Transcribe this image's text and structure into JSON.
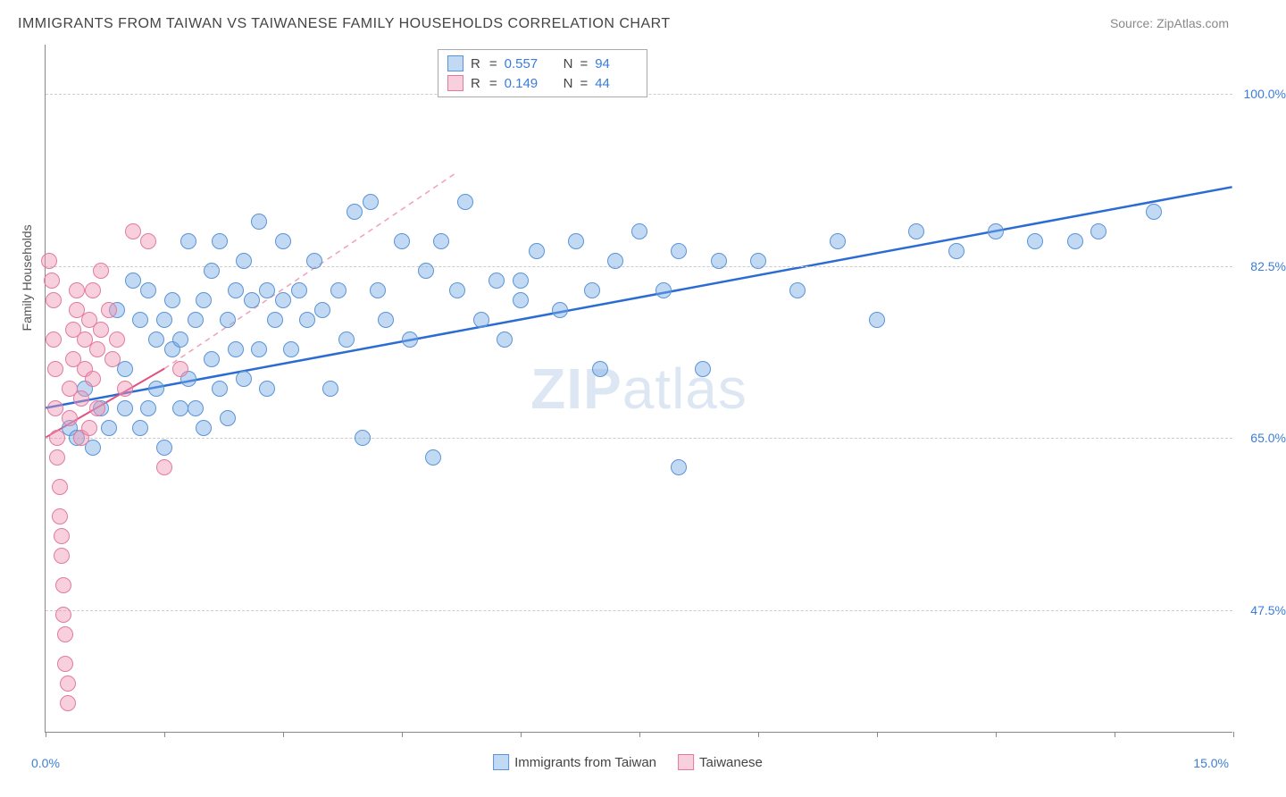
{
  "title": "IMMIGRANTS FROM TAIWAN VS TAIWANESE FAMILY HOUSEHOLDS CORRELATION CHART",
  "source_label": "Source:",
  "source_value": "ZipAtlas.com",
  "watermark_a": "ZIP",
  "watermark_b": "atlas",
  "y_axis_title": "Family Households",
  "x_axis": {
    "min": 0.0,
    "max": 15.0,
    "label_min": "0.0%",
    "label_max": "15.0%",
    "ticks": [
      0,
      1.5,
      3.0,
      4.5,
      6.0,
      7.5,
      9.0,
      10.5,
      12.0,
      13.5,
      15.0
    ]
  },
  "y_axis": {
    "min": 35.0,
    "max": 105.0,
    "grid": [
      47.5,
      65.0,
      82.5,
      100.0
    ],
    "labels": [
      "47.5%",
      "65.0%",
      "82.5%",
      "100.0%"
    ]
  },
  "series": [
    {
      "name": "Immigrants from Taiwan",
      "fill": "rgba(120,170,230,0.45)",
      "stroke": "#5a94d6",
      "r_label": "R",
      "r_value": "0.557",
      "n_label": "N",
      "n_value": "94",
      "trend": {
        "x1": 0.0,
        "y1": 68.0,
        "x2": 15.0,
        "y2": 90.5,
        "color": "#2b6cd4",
        "width": 2.5,
        "dash": ""
      },
      "points": [
        [
          0.3,
          66
        ],
        [
          0.4,
          65
        ],
        [
          0.5,
          70
        ],
        [
          0.6,
          64
        ],
        [
          0.7,
          68
        ],
        [
          0.8,
          66
        ],
        [
          0.9,
          78
        ],
        [
          1.0,
          68
        ],
        [
          1.0,
          72
        ],
        [
          1.1,
          81
        ],
        [
          1.2,
          77
        ],
        [
          1.2,
          66
        ],
        [
          1.3,
          80
        ],
        [
          1.3,
          68
        ],
        [
          1.4,
          75
        ],
        [
          1.4,
          70
        ],
        [
          1.5,
          64
        ],
        [
          1.5,
          77
        ],
        [
          1.6,
          74
        ],
        [
          1.6,
          79
        ],
        [
          1.7,
          68
        ],
        [
          1.7,
          75
        ],
        [
          1.8,
          85
        ],
        [
          1.8,
          71
        ],
        [
          1.9,
          77
        ],
        [
          1.9,
          68
        ],
        [
          2.0,
          79
        ],
        [
          2.0,
          66
        ],
        [
          2.1,
          82
        ],
        [
          2.1,
          73
        ],
        [
          2.2,
          85
        ],
        [
          2.2,
          70
        ],
        [
          2.3,
          77
        ],
        [
          2.3,
          67
        ],
        [
          2.4,
          80
        ],
        [
          2.4,
          74
        ],
        [
          2.5,
          83
        ],
        [
          2.5,
          71
        ],
        [
          2.6,
          79
        ],
        [
          2.7,
          87
        ],
        [
          2.7,
          74
        ],
        [
          2.8,
          80
        ],
        [
          2.8,
          70
        ],
        [
          2.9,
          77
        ],
        [
          3.0,
          79
        ],
        [
          3.0,
          85
        ],
        [
          3.1,
          74
        ],
        [
          3.2,
          80
        ],
        [
          3.3,
          77
        ],
        [
          3.4,
          83
        ],
        [
          3.5,
          78
        ],
        [
          3.6,
          70
        ],
        [
          3.7,
          80
        ],
        [
          3.8,
          75
        ],
        [
          3.9,
          88
        ],
        [
          4.0,
          65
        ],
        [
          4.1,
          89
        ],
        [
          4.2,
          80
        ],
        [
          4.3,
          77
        ],
        [
          4.5,
          85
        ],
        [
          4.6,
          75
        ],
        [
          4.8,
          82
        ],
        [
          4.9,
          63
        ],
        [
          5.0,
          85
        ],
        [
          5.2,
          80
        ],
        [
          5.3,
          89
        ],
        [
          5.5,
          77
        ],
        [
          5.7,
          81
        ],
        [
          5.8,
          75
        ],
        [
          6.0,
          79
        ],
        [
          6.0,
          81
        ],
        [
          6.2,
          84
        ],
        [
          6.5,
          78
        ],
        [
          6.7,
          85
        ],
        [
          6.9,
          80
        ],
        [
          7.0,
          72
        ],
        [
          7.2,
          83
        ],
        [
          7.5,
          86
        ],
        [
          7.8,
          80
        ],
        [
          8.0,
          62
        ],
        [
          8.0,
          84
        ],
        [
          8.3,
          72
        ],
        [
          8.5,
          83
        ],
        [
          9.0,
          83
        ],
        [
          9.5,
          80
        ],
        [
          10.0,
          85
        ],
        [
          10.5,
          77
        ],
        [
          11.0,
          86
        ],
        [
          11.5,
          84
        ],
        [
          12.0,
          86
        ],
        [
          12.5,
          85
        ],
        [
          13.0,
          85
        ],
        [
          13.3,
          86
        ],
        [
          14.0,
          88
        ]
      ]
    },
    {
      "name": "Taiwanese",
      "fill": "rgba(240,150,180,0.45)",
      "stroke": "#e27aa0",
      "r_label": "R",
      "r_value": "0.149",
      "n_label": "N",
      "n_value": "44",
      "trend_solid": {
        "x1": 0.0,
        "y1": 65.0,
        "x2": 1.5,
        "y2": 72.0,
        "color": "#e05080",
        "width": 2,
        "dash": ""
      },
      "trend_dashed": {
        "x1": 1.5,
        "y1": 72.0,
        "x2": 5.2,
        "y2": 92.0,
        "color": "#f0a0b8",
        "width": 1.5,
        "dash": "6,5"
      },
      "points": [
        [
          0.05,
          83
        ],
        [
          0.08,
          81
        ],
        [
          0.1,
          79
        ],
        [
          0.1,
          75
        ],
        [
          0.12,
          72
        ],
        [
          0.12,
          68
        ],
        [
          0.15,
          65
        ],
        [
          0.15,
          63
        ],
        [
          0.18,
          60
        ],
        [
          0.18,
          57
        ],
        [
          0.2,
          55
        ],
        [
          0.2,
          53
        ],
        [
          0.22,
          50
        ],
        [
          0.22,
          47
        ],
        [
          0.25,
          45
        ],
        [
          0.25,
          42
        ],
        [
          0.28,
          40
        ],
        [
          0.28,
          38
        ],
        [
          0.3,
          67
        ],
        [
          0.3,
          70
        ],
        [
          0.35,
          73
        ],
        [
          0.35,
          76
        ],
        [
          0.4,
          78
        ],
        [
          0.4,
          80
        ],
        [
          0.45,
          69
        ],
        [
          0.45,
          65
        ],
        [
          0.5,
          72
        ],
        [
          0.5,
          75
        ],
        [
          0.55,
          77
        ],
        [
          0.55,
          66
        ],
        [
          0.6,
          80
        ],
        [
          0.6,
          71
        ],
        [
          0.65,
          74
        ],
        [
          0.65,
          68
        ],
        [
          0.7,
          82
        ],
        [
          0.7,
          76
        ],
        [
          0.8,
          78
        ],
        [
          0.85,
          73
        ],
        [
          0.9,
          75
        ],
        [
          1.0,
          70
        ],
        [
          1.1,
          86
        ],
        [
          1.3,
          85
        ],
        [
          1.5,
          62
        ],
        [
          1.7,
          72
        ]
      ]
    }
  ],
  "legend_bottom": [
    {
      "label": "Immigrants from Taiwan",
      "fill": "rgba(120,170,230,0.45)",
      "stroke": "#5a94d6"
    },
    {
      "label": "Taiwanese",
      "fill": "rgba(240,150,180,0.45)",
      "stroke": "#e27aa0"
    }
  ]
}
